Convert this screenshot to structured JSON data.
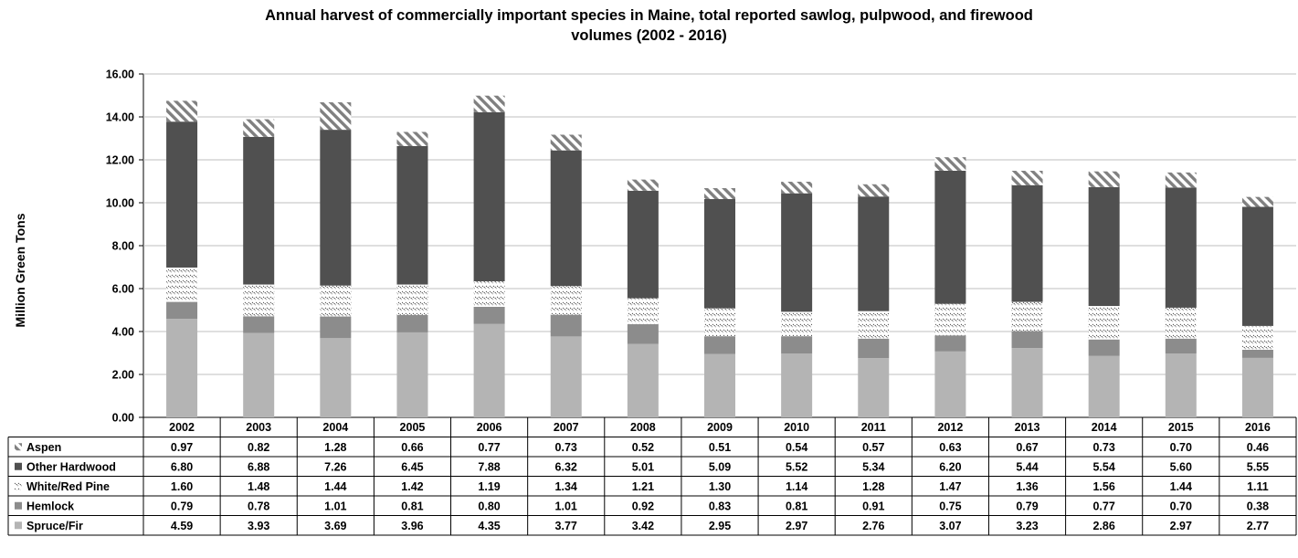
{
  "chart_data": {
    "type": "bar",
    "stacked": true,
    "title": "Annual harvest of commercially important  species in Maine, total reported sawlog, pulpwood, and firewood volumes (2002 - 2016)",
    "title_lines": [
      "Annual harvest of commercially important  species in Maine, total reported sawlog, pulpwood, and firewood",
      "volumes (2002 - 2016)"
    ],
    "ylabel": "Million Green Tons",
    "ylim": [
      0,
      16
    ],
    "yticks": [
      "0.00",
      "2.00",
      "4.00",
      "6.00",
      "8.00",
      "10.00",
      "12.00",
      "14.00",
      "16.00"
    ],
    "grid": true,
    "legend_placement": "data-table",
    "categories": [
      "2002",
      "2003",
      "2004",
      "2005",
      "2006",
      "2007",
      "2008",
      "2009",
      "2010",
      "2011",
      "2012",
      "2013",
      "2014",
      "2015",
      "2016"
    ],
    "series": [
      {
        "name": "Aspen",
        "fill": "hatch-diagonal",
        "color": "#808080",
        "values": [
          0.97,
          0.82,
          1.28,
          0.66,
          0.77,
          0.73,
          0.52,
          0.51,
          0.54,
          0.57,
          0.63,
          0.67,
          0.73,
          0.7,
          0.46
        ],
        "labels": [
          "0.97",
          "0.82",
          "1.28",
          "0.66",
          "0.77",
          "0.73",
          "0.52",
          "0.51",
          "0.54",
          "0.57",
          "0.63",
          "0.67",
          "0.73",
          "0.70",
          "0.46"
        ]
      },
      {
        "name": "Other Hardwood",
        "fill": "solid",
        "color": "#505050",
        "values": [
          6.8,
          6.88,
          7.26,
          6.45,
          7.88,
          6.32,
          5.01,
          5.09,
          5.52,
          5.34,
          6.2,
          5.44,
          5.54,
          5.6,
          5.55
        ],
        "labels": [
          "6.80",
          "6.88",
          "7.26",
          "6.45",
          "7.88",
          "6.32",
          "5.01",
          "5.09",
          "5.52",
          "5.34",
          "6.20",
          "5.44",
          "5.54",
          "5.60",
          "5.55"
        ]
      },
      {
        "name": "White/Red Pine",
        "fill": "hatch-dashed",
        "color": "#404040",
        "values": [
          1.6,
          1.48,
          1.44,
          1.42,
          1.19,
          1.34,
          1.21,
          1.3,
          1.14,
          1.28,
          1.47,
          1.36,
          1.56,
          1.44,
          1.11
        ],
        "labels": [
          "1.60",
          "1.48",
          "1.44",
          "1.42",
          "1.19",
          "1.34",
          "1.21",
          "1.30",
          "1.14",
          "1.28",
          "1.47",
          "1.36",
          "1.56",
          "1.44",
          "1.11"
        ]
      },
      {
        "name": "Hemlock",
        "fill": "solid",
        "color": "#8c8c8c",
        "values": [
          0.79,
          0.78,
          1.01,
          0.81,
          0.8,
          1.01,
          0.92,
          0.83,
          0.81,
          0.91,
          0.75,
          0.79,
          0.77,
          0.7,
          0.38
        ],
        "labels": [
          "0.79",
          "0.78",
          "1.01",
          "0.81",
          "0.80",
          "1.01",
          "0.92",
          "0.83",
          "0.81",
          "0.91",
          "0.75",
          "0.79",
          "0.77",
          "0.70",
          "0.38"
        ]
      },
      {
        "name": "Spruce/Fir",
        "fill": "solid",
        "color": "#b4b4b4",
        "values": [
          4.59,
          3.93,
          3.69,
          3.96,
          4.35,
          3.77,
          3.42,
          2.95,
          2.97,
          2.76,
          3.07,
          3.23,
          2.86,
          2.97,
          2.77
        ],
        "labels": [
          "4.59",
          "3.93",
          "3.69",
          "3.96",
          "4.35",
          "3.77",
          "3.42",
          "2.95",
          "2.97",
          "2.76",
          "3.07",
          "3.23",
          "2.86",
          "2.97",
          "2.77"
        ]
      }
    ]
  }
}
